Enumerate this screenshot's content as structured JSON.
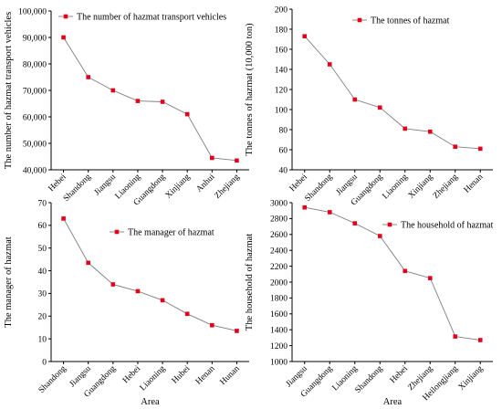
{
  "chart_data": [
    {
      "type": "line",
      "categories": [
        "Hebei",
        "Shandong",
        "Jiangsu",
        "Liaoning",
        "Guangdong",
        "Xinjiang",
        "Anhui",
        "Zhejiang"
      ],
      "series": [
        {
          "name": "The number of hazmat transport vehicles",
          "values": [
            90000,
            75000,
            70000,
            66000,
            65700,
            61000,
            44500,
            43500
          ]
        }
      ],
      "title": "",
      "xlabel": "",
      "ylabel": "The number of hazmat transport vehicles",
      "ylim": [
        40000,
        100000
      ],
      "yticks": [
        40000,
        50000,
        60000,
        70000,
        80000,
        90000,
        100000
      ],
      "ytick_labels": [
        "40,000",
        "50,000",
        "60,000",
        "70,000",
        "80,000",
        "90,000",
        "100,000"
      ],
      "legend_position": "top-left",
      "grid": false,
      "color": "#e2001a"
    },
    {
      "type": "line",
      "categories": [
        "Hebei",
        "Shandong",
        "Jiangsu",
        "Guangdong",
        "Liaoning",
        "Xinjiang",
        "Zhejiang",
        "Henan"
      ],
      "series": [
        {
          "name": "The tonnes of hazmat",
          "values": [
            173,
            145,
            110,
            102,
            81,
            78,
            63,
            61
          ]
        }
      ],
      "title": "",
      "xlabel": "",
      "ylabel": "The tonnes of hazmat (10,000 ton)",
      "ylim": [
        40,
        200
      ],
      "yticks": [
        40,
        60,
        80,
        100,
        120,
        140,
        160,
        180,
        200
      ],
      "ytick_labels": [
        "40",
        "60",
        "80",
        "100",
        "120",
        "140",
        "160",
        "180",
        "200"
      ],
      "legend_position": "top-right",
      "grid": false,
      "color": "#e2001a"
    },
    {
      "type": "line",
      "categories": [
        "Shandong",
        "Jiangsu",
        "Guangdong",
        "Hebei",
        "Liaoning",
        "Hubei",
        "Henan",
        "Hunan"
      ],
      "series": [
        {
          "name": "The manager of hazmat",
          "values": [
            63,
            43.5,
            34,
            31,
            27,
            21,
            16,
            13.5
          ]
        }
      ],
      "title": "",
      "xlabel": "Area",
      "ylabel": "The manager of hazmat",
      "ylim": [
        0,
        70
      ],
      "yticks": [
        0,
        10,
        20,
        30,
        40,
        50,
        60,
        70
      ],
      "ytick_labels": [
        "0",
        "10",
        "20",
        "30",
        "40",
        "50",
        "60",
        "70"
      ],
      "legend_position": "top-right",
      "grid": false,
      "color": "#e2001a"
    },
    {
      "type": "line",
      "categories": [
        "Jiangsu",
        "Guangdong",
        "Liaoning",
        "Shandong",
        "Hebei",
        "Zhejiang",
        "Heilongjiang",
        "Xinjiang"
      ],
      "series": [
        {
          "name": "The household of hazmat",
          "values": [
            2940,
            2880,
            2740,
            2580,
            2140,
            2050,
            1315,
            1270
          ]
        }
      ],
      "title": "",
      "xlabel": "Area",
      "ylabel": "The household of hazmat",
      "ylim": [
        1000,
        3000
      ],
      "yticks": [
        1000,
        1200,
        1400,
        1600,
        1800,
        2000,
        2200,
        2400,
        2600,
        2800,
        3000
      ],
      "ytick_labels": [
        "1000",
        "1200",
        "1400",
        "1600",
        "1800",
        "2000",
        "2200",
        "2400",
        "2600",
        "2800",
        "3000"
      ],
      "legend_position": "top-right",
      "grid": false,
      "color": "#e2001a"
    }
  ]
}
